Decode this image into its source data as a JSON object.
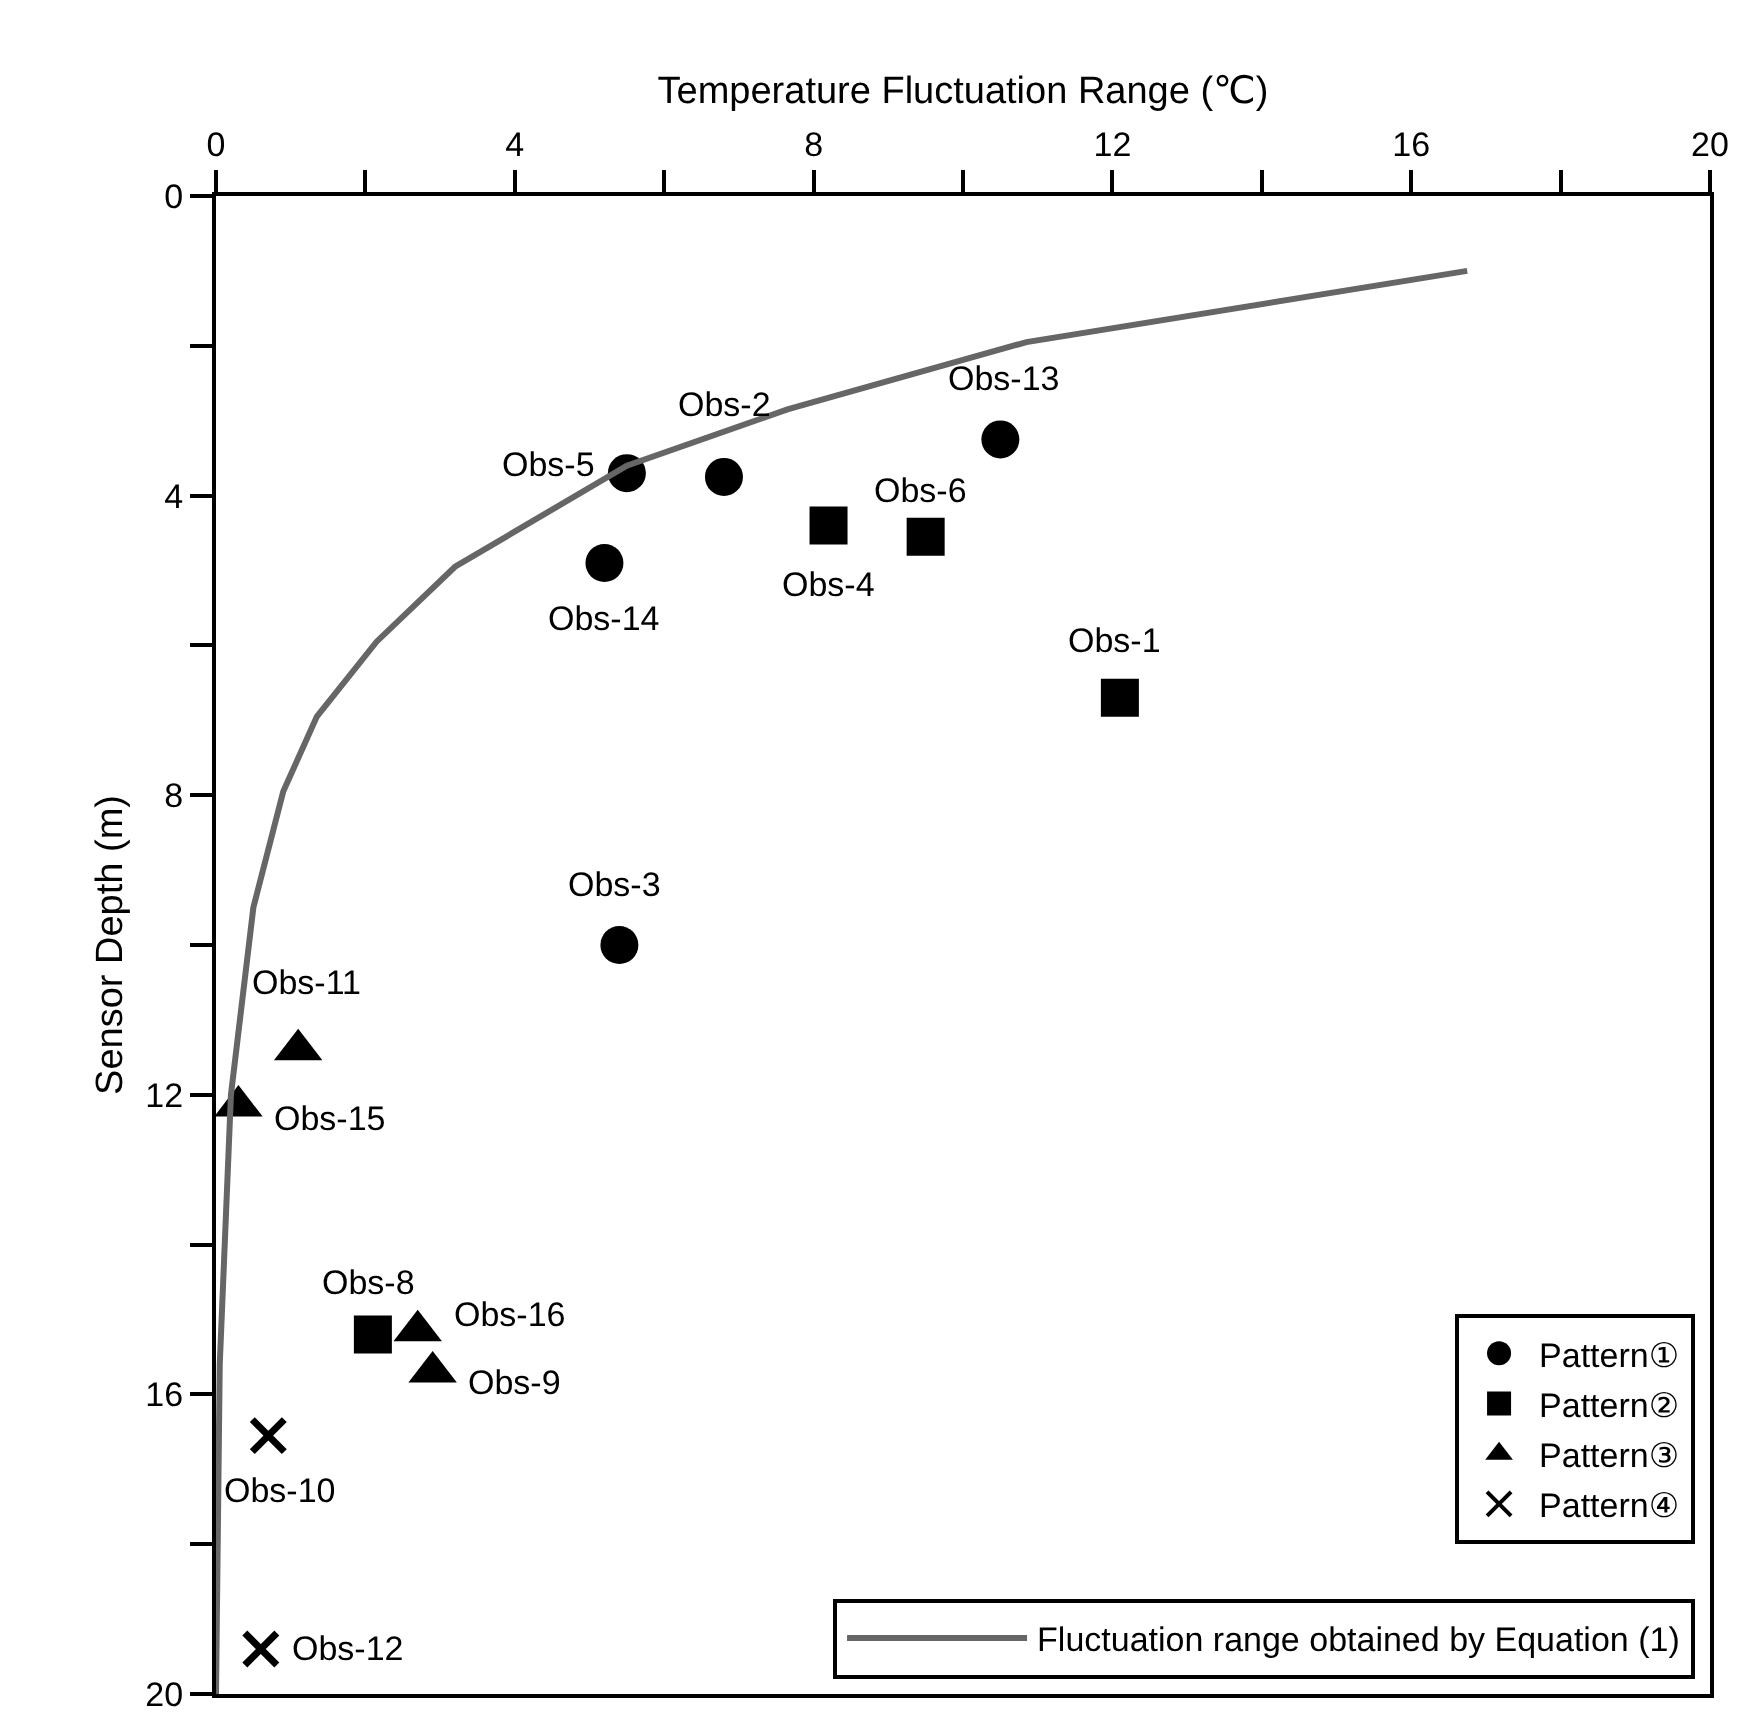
{
  "chart_data": {
    "type": "scatter",
    "xlabel": "Temperature Fluctuation Range (℃)",
    "ylabel": "Sensor Depth (m)",
    "xlim": [
      0,
      20
    ],
    "xticks": [
      0,
      {
        "value": 2,
        "label": null
      },
      4,
      {
        "value": 6,
        "label": null
      },
      8,
      {
        "value": 10,
        "label": null
      },
      12,
      {
        "value": 14,
        "label": null
      },
      16,
      {
        "value": 18,
        "label": null
      },
      20
    ],
    "ylim": [
      20,
      0
    ],
    "yticks": [
      0,
      {
        "value": 2,
        "label": null
      },
      4,
      {
        "value": 6,
        "label": null
      },
      8,
      {
        "value": 10,
        "label": null
      },
      12,
      {
        "value": 14,
        "label": null
      },
      16,
      {
        "value": 18,
        "label": null
      },
      20
    ],
    "legend": "bottom right",
    "series": [
      {
        "name": "Pattern①",
        "color": "#000000",
        "marker": "circle",
        "x": [
          5.5,
          6.8,
          10.5,
          5.2,
          5.4
        ],
        "values": [
          3.7,
          3.75,
          3.25,
          4.9,
          10.0
        ]
      },
      {
        "name": "Pattern②",
        "color": "#000000",
        "marker": "square",
        "x": [
          8.2,
          9.5,
          12.1,
          2.1
        ],
        "values": [
          4.4,
          4.55,
          6.7,
          15.2
        ]
      },
      {
        "name": "Pattern③",
        "color": "#000000",
        "marker": "triangle",
        "x": [
          1.1,
          0.3,
          2.7,
          2.9
        ],
        "values": [
          11.4,
          12.15,
          15.15,
          15.7
        ]
      },
      {
        "name": "Pattern④",
        "color": "#000000",
        "marker": "cross",
        "x": [
          0.7,
          0.6
        ],
        "values": [
          16.55,
          19.4
        ]
      },
      {
        "name": "Fluctuation range obtained by Equation (1)",
        "type": "line",
        "color": "#666666",
        "marker": "none",
        "line_style": "solid",
        "x": [
          16.75,
          10.85,
          7.65,
          5.5,
          3.2,
          2.15,
          1.35,
          0.9,
          0.5,
          0.2,
          0.05,
          0.0
        ],
        "values": [
          1.0,
          1.95,
          2.85,
          3.6,
          4.95,
          5.95,
          6.95,
          7.95,
          9.5,
          12.0,
          15.6,
          20.0
        ]
      }
    ],
    "annotations": [
      {
        "text": "Obs-5",
        "x": 5.5,
        "y": 3.7
      },
      {
        "text": "Obs-2",
        "x": 6.8,
        "y": 3.75
      },
      {
        "text": "Obs-13",
        "x": 10.5,
        "y": 3.25
      },
      {
        "text": "Obs-14",
        "x": 5.2,
        "y": 4.9
      },
      {
        "text": "Obs-3",
        "x": 5.4,
        "y": 10.0
      },
      {
        "text": "Obs-4",
        "x": 8.2,
        "y": 4.4
      },
      {
        "text": "Obs-6",
        "x": 9.5,
        "y": 4.55
      },
      {
        "text": "Obs-1",
        "x": 12.1,
        "y": 6.7
      },
      {
        "text": "Obs-8",
        "x": 2.1,
        "y": 15.2
      },
      {
        "text": "Obs-11",
        "x": 1.1,
        "y": 11.4
      },
      {
        "text": "Obs-15",
        "x": 0.3,
        "y": 12.15
      },
      {
        "text": "Obs-16",
        "x": 2.7,
        "y": 15.15
      },
      {
        "text": "Obs-9",
        "x": 2.9,
        "y": 15.7
      },
      {
        "text": "Obs-10",
        "x": 0.7,
        "y": 16.55
      },
      {
        "text": "Obs-12",
        "x": 0.6,
        "y": 19.4
      }
    ]
  }
}
